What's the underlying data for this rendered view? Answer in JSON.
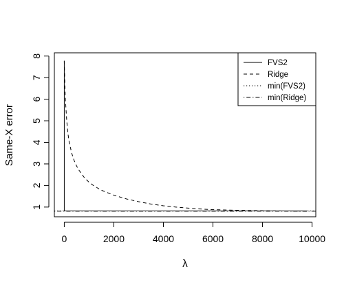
{
  "chart_data": {
    "type": "line",
    "title": "",
    "xlabel": "λ",
    "ylabel": "Same-X error",
    "xlim": [
      -400,
      10150
    ],
    "ylim": [
      0.55,
      8.15
    ],
    "x_ticks": [
      0,
      2000,
      4000,
      6000,
      8000,
      10000
    ],
    "x_tick_labels": [
      "0",
      "2000",
      "4000",
      "6000",
      "8000",
      "10000"
    ],
    "y_ticks": [
      1,
      2,
      3,
      4,
      5,
      6,
      7,
      8
    ],
    "y_tick_labels": [
      "1",
      "2",
      "3",
      "4",
      "5",
      "6",
      "7",
      "8"
    ],
    "grid": false,
    "legend_position": "top-right",
    "legend": [
      {
        "label": "FVS2",
        "line_style": "solid"
      },
      {
        "label": "Ridge",
        "line_style": "dashed"
      },
      {
        "label": "min(FVS2)",
        "line_style": "dotted"
      },
      {
        "label": "min(Ridge)",
        "line_style": "dotdash"
      }
    ],
    "series": [
      {
        "name": "FVS2",
        "line_style": "solid",
        "x": [
          0,
          0,
          5,
          10,
          20,
          50,
          100,
          200,
          500,
          1000,
          2000,
          3000,
          4000,
          5000,
          6000,
          7000,
          8000,
          9000,
          9800
        ],
        "y": [
          7.78,
          0.84,
          0.83,
          0.82,
          0.82,
          0.82,
          0.82,
          0.82,
          0.82,
          0.82,
          0.82,
          0.82,
          0.82,
          0.82,
          0.82,
          0.82,
          0.82,
          0.82,
          0.82
        ]
      },
      {
        "name": "Ridge",
        "line_style": "dashed",
        "x": [
          0,
          25,
          50,
          100,
          150,
          200,
          300,
          400,
          500,
          600,
          800,
          1000,
          1200,
          1500,
          2000,
          2500,
          3000,
          3500,
          4000,
          4500,
          5000,
          5500,
          6000,
          7000,
          8000,
          9000,
          9800
        ],
        "y": [
          7.78,
          6.6,
          5.9,
          5.0,
          4.4,
          4.0,
          3.5,
          3.15,
          2.9,
          2.7,
          2.38,
          2.15,
          1.98,
          1.78,
          1.55,
          1.38,
          1.25,
          1.14,
          1.06,
          1.0,
          0.95,
          0.91,
          0.88,
          0.85,
          0.83,
          0.82,
          0.81
        ]
      },
      {
        "name": "min(FVS2)",
        "line_style": "dotted",
        "y_constant": 0.82
      },
      {
        "name": "min(Ridge)",
        "line_style": "dotdash",
        "y_constant": 0.81
      }
    ],
    "colors": {
      "line": "#000000",
      "axis": "#000000",
      "background": "#ffffff"
    }
  }
}
